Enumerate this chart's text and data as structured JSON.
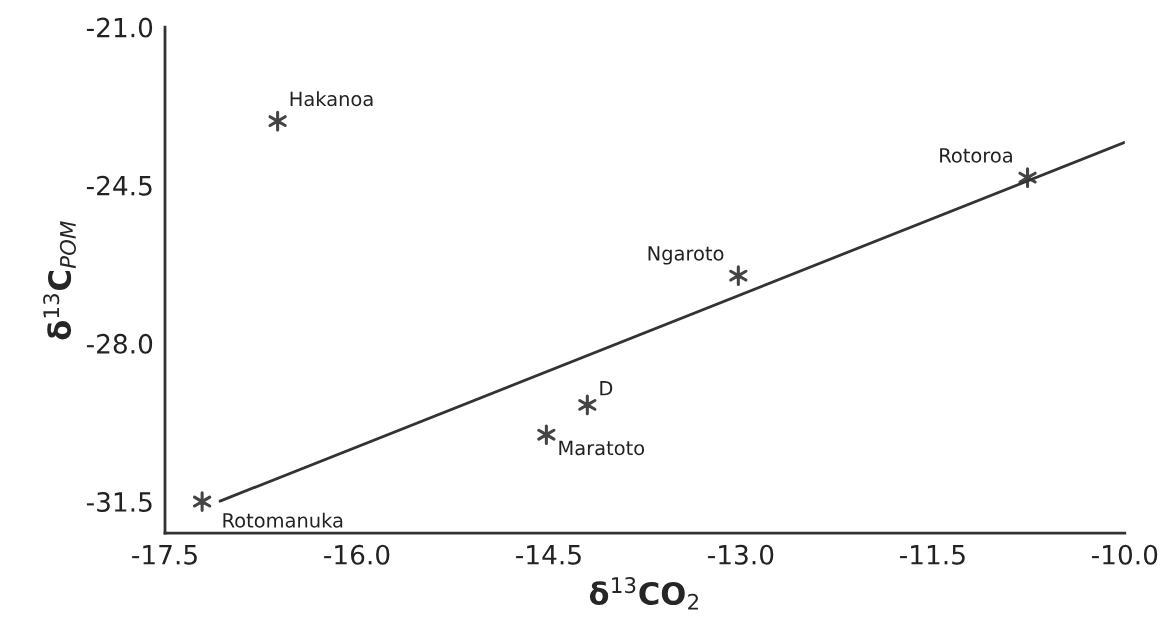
{
  "chart_data": {
    "type": "scatter",
    "xlabel": "δ$^{13}$CO$_{2}$",
    "ylabel": "δ$^{13}$C$_{POM}$",
    "xlim": [
      -17.5,
      -10.0
    ],
    "xticks": [
      {
        "value": -17.5,
        "label": "-17.5"
      },
      {
        "value": -16.0,
        "label": "-16.0"
      },
      {
        "value": -14.5,
        "label": "-14.5"
      },
      {
        "value": -13.0,
        "label": "-13.0"
      },
      {
        "value": -11.5,
        "label": "-11.5"
      },
      {
        "value": -10.0,
        "label": "-10.0"
      }
    ],
    "ylim": [
      -32.2,
      -21.0
    ],
    "yticks": [
      {
        "value": -21.0,
        "label": "-21.0"
      },
      {
        "value": -24.5,
        "label": "-24.5"
      },
      {
        "value": -28.0,
        "label": "-28.0"
      },
      {
        "value": -31.5,
        "label": "-31.5"
      }
    ],
    "grid": false,
    "marker": "cross",
    "series": [
      {
        "color": "#444444",
        "x": [
          -16.62,
          -10.76,
          -13.02,
          -14.2,
          -14.52,
          -17.21
        ],
        "values": [
          -23.08,
          -24.33,
          -26.5,
          -29.36,
          -30.02,
          -31.5
        ]
      },
      {
        "type": "line",
        "color": "#333333",
        "x": [
          -17.07,
          -10.0
        ],
        "values": [
          -31.49,
          -23.55
        ],
        "line_style": "solid",
        "marker": "none"
      }
    ],
    "annotations": [
      {
        "text": "Hakanoa",
        "x": -16.62,
        "y": -23.08
      },
      {
        "text": "Rotoroa",
        "x": -10.76,
        "y": -24.33
      },
      {
        "text": "Ngaroto",
        "x": -13.02,
        "y": -26.5
      },
      {
        "text": "D",
        "x": -14.2,
        "y": -29.36
      },
      {
        "text": "Maratoto",
        "x": -14.52,
        "y": -30.02
      },
      {
        "text": "Rotomanuka",
        "x": -17.21,
        "y": -31.5
      }
    ]
  }
}
